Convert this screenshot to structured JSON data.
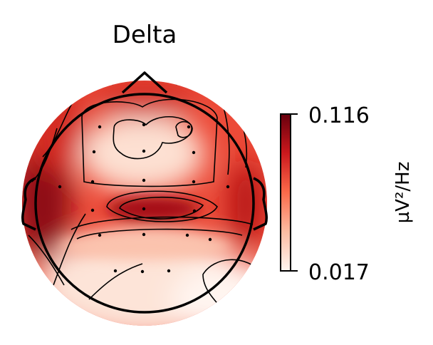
{
  "title": "Delta",
  "colorbar": {
    "max_label": "0.116",
    "min_label": "0.017",
    "unit_label": "µV²/Hz",
    "max_value": 0.116,
    "min_value": 0.017,
    "colormap": [
      "#fff5f0",
      "#fcbba1",
      "#fb6a4a",
      "#cb181d",
      "#67000d"
    ]
  },
  "colors": {
    "outline": "#000000",
    "background": "#ffffff"
  }
}
